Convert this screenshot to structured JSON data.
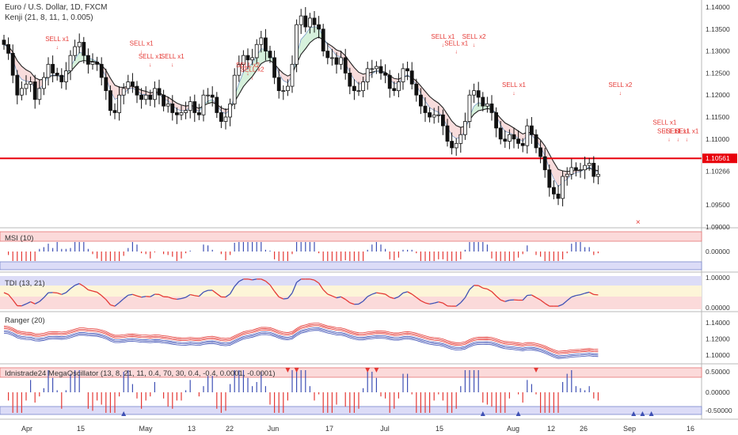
{
  "header": {
    "symbol": "Euro / U.S. Dollar, 1D, FXCM",
    "indicator": "Kenji (21, 8, 11, 1, 0.005)"
  },
  "panels": {
    "msi": "MSI (10)",
    "tdi": "TDI (13, 21)",
    "ranger": "Ranger (20)",
    "mega": "Idnistrade24 MegaOscillator (13, 8, 21, 11, 0.4, 70, 30, 0.4, -0.4, 0.0001, -0.0001)"
  },
  "colors": {
    "bull": "#ffffff",
    "bear": "#111111",
    "hline": "#e8000b",
    "sell": "#e53935",
    "blue": "#3f51b5",
    "green": "#4caf50"
  },
  "chart_data": [
    {
      "type": "candlestick",
      "title": "Euro / U.S. Dollar, 1D, FXCM",
      "ylim": [
        1.09,
        1.14
      ],
      "y_ticks": [
        "1.14000",
        "1.13500",
        "1.13000",
        "1.12500",
        "1.12000",
        "1.11500",
        "1.11000",
        "1.10266",
        "1.09500",
        "1.09000"
      ],
      "last_price": "1.10266",
      "hline": {
        "value": 1.10561,
        "label": "1.10561"
      },
      "x_ticks": [
        "Apr",
        "15",
        "May",
        "13",
        "22",
        "Jun",
        "17",
        "Jul",
        "15",
        "Aug",
        "12",
        "26",
        "Sep",
        "16"
      ],
      "close": [
        1.1315,
        1.1295,
        1.1245,
        1.12,
        1.1215,
        1.1225,
        1.123,
        1.119,
        1.1215,
        1.124,
        1.127,
        1.125,
        1.1245,
        1.123,
        1.1255,
        1.129,
        1.131,
        1.132,
        1.129,
        1.127,
        1.1275,
        1.127,
        1.124,
        1.121,
        1.1165,
        1.116,
        1.12,
        1.1215,
        1.123,
        1.122,
        1.12,
        1.119,
        1.12,
        1.119,
        1.1215,
        1.12,
        1.1175,
        1.118,
        1.116,
        1.1155,
        1.116,
        1.1165,
        1.1185,
        1.116,
        1.1155,
        1.12,
        1.12,
        1.1195,
        1.116,
        1.114,
        1.115,
        1.118,
        1.1245,
        1.127,
        1.129,
        1.128,
        1.1285,
        1.1315,
        1.133,
        1.13,
        1.1285,
        1.124,
        1.121,
        1.121,
        1.122,
        1.127,
        1.136,
        1.138,
        1.1355,
        1.1375,
        1.136,
        1.135,
        1.13,
        1.1285,
        1.1285,
        1.127,
        1.1285,
        1.125,
        1.122,
        1.121,
        1.121,
        1.123,
        1.126,
        1.126,
        1.1265,
        1.125,
        1.1245,
        1.1215,
        1.121,
        1.123,
        1.126,
        1.1255,
        1.1225,
        1.12,
        1.1175,
        1.116,
        1.115,
        1.1155,
        1.1155,
        1.113,
        1.1095,
        1.108,
        1.109,
        1.111,
        1.114,
        1.12,
        1.121,
        1.1195,
        1.1175,
        1.118,
        1.116,
        1.1125,
        1.11,
        1.1095,
        1.111,
        1.11,
        1.109,
        1.1085,
        1.113,
        1.111,
        1.108,
        1.106,
        1.103,
        1.099,
        1.0975,
        1.0965,
        1.1015,
        1.102,
        1.1035,
        1.103,
        1.103,
        1.104,
        1.1045,
        1.1015,
        1.102
      ],
      "annotations": [
        {
          "text": "SELL x1",
          "bar": 12,
          "price": 1.1305
        },
        {
          "text": "SELL x1",
          "bar": 31,
          "price": 1.1295
        },
        {
          "text": "SELL x1",
          "bar": 33,
          "price": 1.1265
        },
        {
          "text": "SELL x1",
          "bar": 38,
          "price": 1.1265
        },
        {
          "text": "SELL x2",
          "bar": 55,
          "price": 1.1245
        },
        {
          "text": "SELL x2",
          "bar": 56,
          "price": 1.1235
        },
        {
          "text": "SELL x1",
          "bar": 99,
          "price": 1.131
        },
        {
          "text": "SELL x1",
          "bar": 102,
          "price": 1.1295
        },
        {
          "text": "SELL x2",
          "bar": 106,
          "price": 1.131
        },
        {
          "text": "SELL x1",
          "bar": 115,
          "price": 1.12
        },
        {
          "text": "SELL x2",
          "bar": 139,
          "price": 1.12
        },
        {
          "text": "SELL x1",
          "bar": 149,
          "price": 1.1115
        },
        {
          "text": "SELL x1",
          "bar": 150,
          "price": 1.1095
        },
        {
          "text": "SELL x1",
          "bar": 152,
          "price": 1.1095
        },
        {
          "text": "SELL x1",
          "bar": 154,
          "price": 1.1095
        }
      ]
    },
    {
      "type": "bar",
      "title": "MSI (10)",
      "y_ticks": [
        "0.00000"
      ]
    },
    {
      "type": "line",
      "title": "TDI (13, 21)",
      "y_ticks": [
        "1.00000",
        "0.00000"
      ]
    },
    {
      "type": "line",
      "title": "Ranger (20)",
      "y_ticks": [
        "1.14000",
        "1.12000",
        "1.10000"
      ]
    },
    {
      "type": "bar",
      "title": "Idnistrade24 MegaOscillator (13, 8, 21, 11, 0.4, 70, 30, 0.4, -0.4, 0.0001, -0.0001)",
      "y_ticks": [
        "0.50000",
        "0.00000",
        "-0.50000"
      ]
    }
  ]
}
